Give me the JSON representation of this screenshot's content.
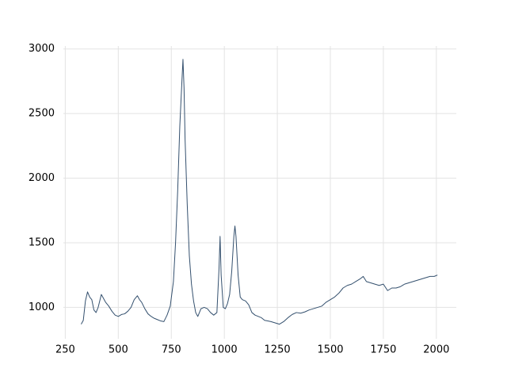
{
  "chart_data": {
    "type": "line",
    "color": "#34506e",
    "grid": true,
    "xlim": [
      241,
      2094
    ],
    "ylim": [
      757,
      3023
    ],
    "xticks": [
      250,
      500,
      750,
      1000,
      1250,
      1500,
      1750,
      2000
    ],
    "yticks": [
      1000,
      1500,
      2000,
      2500,
      3000
    ],
    "x": [
      325,
      335,
      345,
      355,
      365,
      375,
      385,
      395,
      405,
      420,
      430,
      440,
      455,
      470,
      485,
      500,
      515,
      530,
      545,
      560,
      575,
      590,
      600,
      610,
      625,
      640,
      655,
      670,
      685,
      700,
      715,
      730,
      745,
      760,
      770,
      780,
      790,
      800,
      805,
      810,
      815,
      825,
      835,
      845,
      855,
      865,
      875,
      890,
      905,
      920,
      935,
      950,
      965,
      975,
      980,
      985,
      995,
      1005,
      1015,
      1025,
      1035,
      1045,
      1050,
      1055,
      1065,
      1075,
      1085,
      1100,
      1115,
      1130,
      1145,
      1160,
      1175,
      1190,
      1205,
      1220,
      1240,
      1260,
      1280,
      1300,
      1320,
      1340,
      1360,
      1380,
      1400,
      1420,
      1440,
      1460,
      1480,
      1500,
      1520,
      1540,
      1560,
      1580,
      1600,
      1620,
      1640,
      1655,
      1670,
      1690,
      1710,
      1730,
      1750,
      1770,
      1790,
      1810,
      1830,
      1850,
      1870,
      1890,
      1910,
      1930,
      1950,
      1970,
      1990,
      2005
    ],
    "values": [
      870,
      900,
      1050,
      1120,
      1080,
      1060,
      980,
      960,
      1000,
      1100,
      1070,
      1040,
      1010,
      970,
      940,
      930,
      945,
      950,
      970,
      1000,
      1060,
      1090,
      1060,
      1040,
      990,
      950,
      930,
      915,
      905,
      895,
      890,
      940,
      1010,
      1200,
      1500,
      1900,
      2400,
      2750,
      2920,
      2700,
      2300,
      1800,
      1400,
      1180,
      1050,
      960,
      930,
      990,
      1000,
      990,
      960,
      940,
      960,
      1300,
      1550,
      1250,
      1000,
      990,
      1030,
      1100,
      1280,
      1550,
      1630,
      1550,
      1250,
      1080,
      1060,
      1050,
      1020,
      960,
      940,
      930,
      920,
      900,
      895,
      890,
      880,
      870,
      890,
      920,
      945,
      960,
      955,
      965,
      980,
      990,
      1000,
      1010,
      1040,
      1060,
      1080,
      1110,
      1150,
      1170,
      1180,
      1200,
      1220,
      1240,
      1200,
      1190,
      1180,
      1170,
      1180,
      1130,
      1150,
      1150,
      1160,
      1180,
      1190,
      1200,
      1210,
      1220,
      1230,
      1240,
      1240,
      1250
    ]
  }
}
